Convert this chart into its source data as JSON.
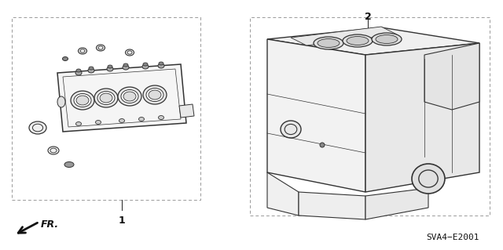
{
  "background_color": "#ffffff",
  "fig_width": 6.4,
  "fig_height": 3.19,
  "dpi": 100,
  "label1": "1",
  "label2": "2",
  "ref_code": "SVA4−E2001",
  "fr_label": "FR.",
  "line_color": "#333333",
  "text_color": "#111111"
}
